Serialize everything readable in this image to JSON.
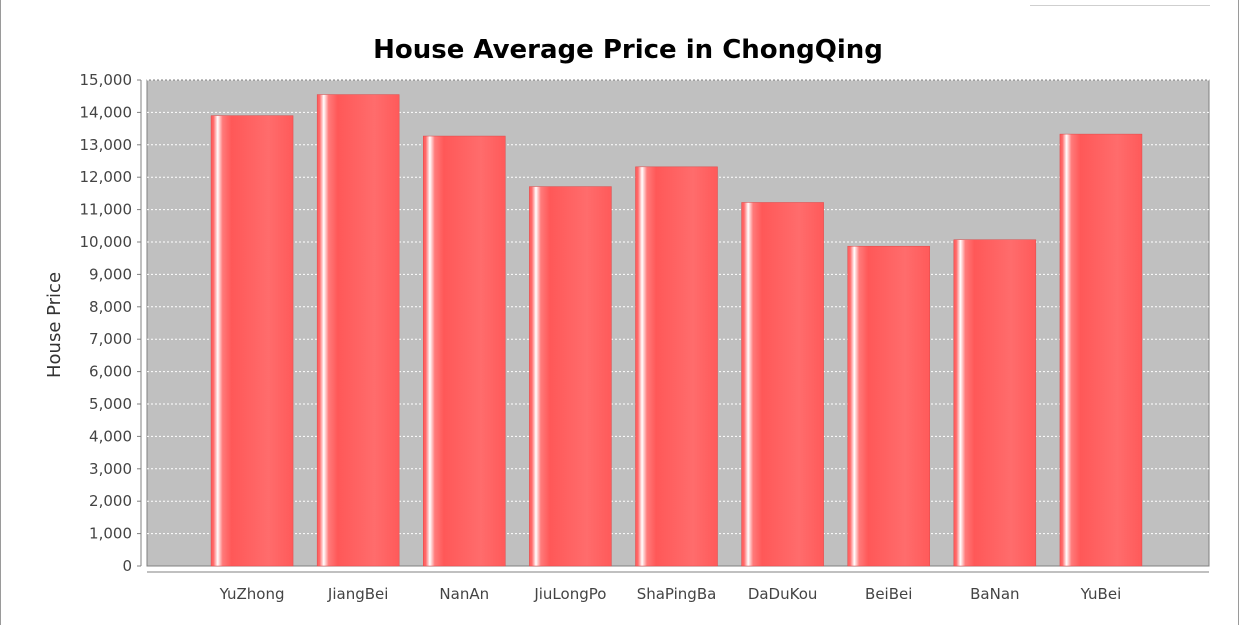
{
  "chart_data": {
    "type": "bar",
    "title": "House Average Price in ChongQing",
    "xlabel": "",
    "ylabel": "House Price",
    "categories": [
      "YuZhong",
      "JiangBei",
      "NanAn",
      "JiuLongPo",
      "ShaPingBa",
      "DaDuKou",
      "BeiBei",
      "BaNan",
      "YuBei"
    ],
    "values": [
      13900,
      14550,
      13270,
      11710,
      12320,
      11220,
      9870,
      10070,
      13330
    ],
    "ylim": [
      0,
      15000
    ],
    "yticks": [
      0,
      1000,
      2000,
      3000,
      4000,
      5000,
      6000,
      7000,
      8000,
      9000,
      10000,
      11000,
      12000,
      13000,
      14000,
      15000
    ],
    "ytick_labels": [
      "0",
      "1,000",
      "2,000",
      "3,000",
      "4,000",
      "5,000",
      "6,000",
      "7,000",
      "8,000",
      "9,000",
      "10,000",
      "11,000",
      "12,000",
      "13,000",
      "14,000",
      "15,000"
    ],
    "grid": true,
    "legend": "none",
    "colors": {
      "bar": "#ff5a5a",
      "bar_highlight": "#ffffff",
      "plot_background": "#c0c0c0",
      "gridline": "#ffffff"
    }
  }
}
